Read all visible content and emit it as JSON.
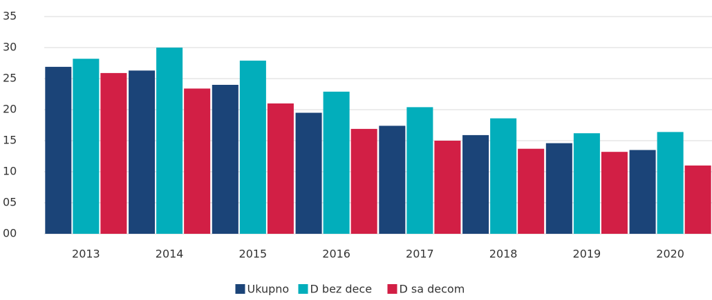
{
  "chart_data": {
    "type": "bar",
    "categories": [
      "2013",
      "2014",
      "2015",
      "2016",
      "2017",
      "2018",
      "2019",
      "2020"
    ],
    "series": [
      {
        "name": "Ukupno",
        "color": "#1b4478",
        "values": [
          26.9,
          26.3,
          24.0,
          19.5,
          17.4,
          15.9,
          14.6,
          13.5
        ]
      },
      {
        "name": "D bez dece",
        "color": "#02aebb",
        "values": [
          28.2,
          30.0,
          27.9,
          22.9,
          20.4,
          18.6,
          16.2,
          16.4
        ]
      },
      {
        "name": "D sa decom",
        "color": "#d21f45",
        "values": [
          25.9,
          23.4,
          21.0,
          16.9,
          15.0,
          13.7,
          13.2,
          11.0
        ]
      }
    ],
    "ylim": [
      0,
      35
    ],
    "yticks": [
      {
        "value": 0,
        "label": "00"
      },
      {
        "value": 5,
        "label": "05"
      },
      10,
      15,
      20,
      25,
      30,
      35
    ],
    "grid": true,
    "legend": "bottom"
  }
}
